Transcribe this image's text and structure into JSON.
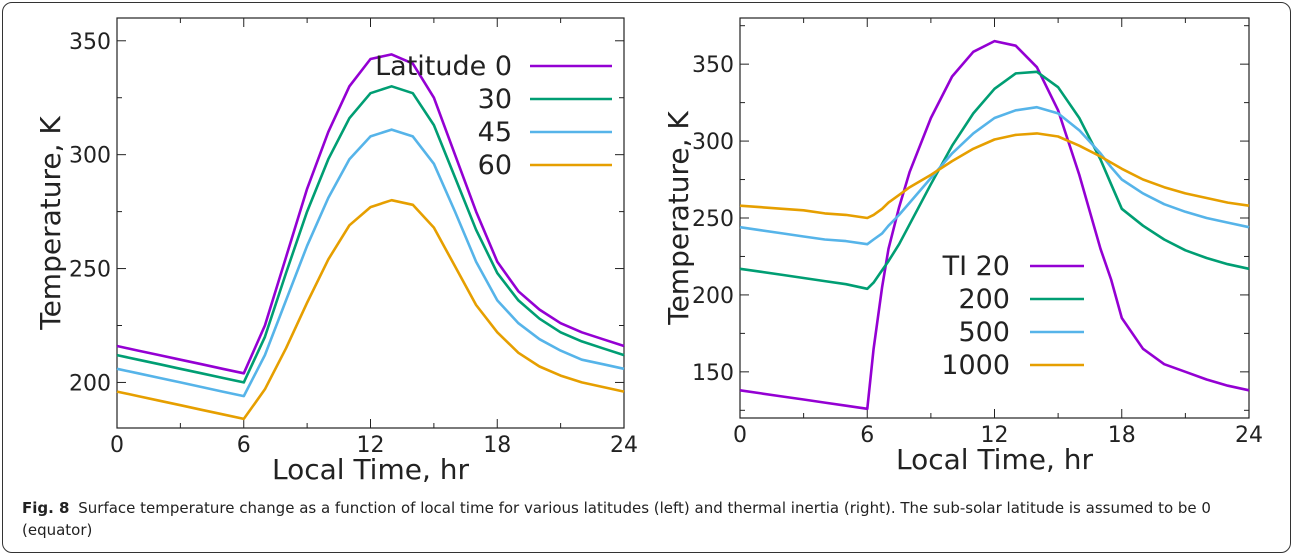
{
  "caption": {
    "label": "Fig. 8",
    "text": "Surface temperature change as a function of local time for various latitudes (left) and thermal inertia (right). The sub-solar latitude is assumed to be 0 (equator)"
  },
  "colors": {
    "purple": "#9400d3",
    "green": "#009e73",
    "blue": "#56b4e9",
    "orange": "#e69f00"
  },
  "chart_data": [
    {
      "type": "line",
      "xlabel": "Local Time, hr",
      "ylabel": "Temperature, K",
      "xlim": [
        0,
        24
      ],
      "ylim": [
        180,
        360
      ],
      "xticks": [
        0,
        6,
        12,
        18,
        24
      ],
      "yticks": [
        200,
        250,
        300,
        350
      ],
      "grid": false,
      "legend_position": "top-right",
      "x": [
        0,
        1,
        2,
        3,
        4,
        5,
        6,
        7,
        8,
        9,
        10,
        11,
        12,
        13,
        14,
        15,
        16,
        17,
        18,
        19,
        20,
        21,
        22,
        23,
        24
      ],
      "series": [
        {
          "name": "Latitude 0",
          "color": "#9400d3",
          "values": [
            216,
            214,
            212,
            210,
            208,
            206,
            204,
            225,
            255,
            285,
            310,
            330,
            342,
            344,
            340,
            325,
            300,
            275,
            253,
            240,
            232,
            226,
            222,
            219,
            216
          ]
        },
        {
          "name": "30",
          "color": "#009e73",
          "values": [
            212,
            210,
            208,
            206,
            204,
            202,
            200,
            220,
            248,
            275,
            298,
            316,
            327,
            330,
            327,
            313,
            290,
            267,
            248,
            236,
            228,
            222,
            218,
            215,
            212
          ]
        },
        {
          "name": "45",
          "color": "#56b4e9",
          "values": [
            206,
            204,
            202,
            200,
            198,
            196,
            194,
            212,
            236,
            260,
            281,
            298,
            308,
            311,
            308,
            296,
            275,
            253,
            236,
            226,
            219,
            214,
            210,
            208,
            206
          ]
        },
        {
          "name": "60",
          "color": "#e69f00",
          "values": [
            196,
            194,
            192,
            190,
            188,
            186,
            184,
            197,
            215,
            235,
            254,
            269,
            277,
            280,
            278,
            268,
            251,
            234,
            222,
            213,
            207,
            203,
            200,
            198,
            196
          ]
        }
      ]
    },
    {
      "type": "line",
      "xlabel": "Local Time, hr",
      "ylabel": "Temperature, K",
      "xlim": [
        0,
        24
      ],
      "ylim": [
        120,
        380
      ],
      "xticks": [
        0,
        6,
        12,
        18,
        24
      ],
      "yticks": [
        150,
        200,
        250,
        300,
        350
      ],
      "grid": false,
      "legend_position": "bottom-center",
      "legend_prefix": "TI",
      "x": [
        0,
        1,
        2,
        3,
        4,
        5,
        6,
        6.3,
        6.7,
        7,
        7.5,
        8,
        9,
        10,
        11,
        12,
        13,
        14,
        15,
        16,
        17,
        17.5,
        18,
        19,
        20,
        21,
        22,
        23,
        24
      ],
      "series": [
        {
          "name": "20",
          "color": "#9400d3",
          "values": [
            138,
            136,
            134,
            132,
            130,
            128,
            126,
            165,
            205,
            230,
            257,
            280,
            315,
            342,
            358,
            365,
            362,
            348,
            320,
            278,
            230,
            210,
            185,
            165,
            155,
            150,
            145,
            141,
            138
          ]
        },
        {
          "name": "200",
          "color": "#009e73",
          "values": [
            217,
            215,
            213,
            211,
            209,
            207,
            204,
            208,
            216,
            222,
            233,
            246,
            272,
            297,
            318,
            334,
            344,
            345,
            335,
            315,
            288,
            272,
            256,
            245,
            236,
            229,
            224,
            220,
            217
          ]
        },
        {
          "name": "500",
          "color": "#56b4e9",
          "values": [
            244,
            242,
            240,
            238,
            236,
            235,
            233,
            236,
            240,
            245,
            252,
            260,
            276,
            292,
            305,
            315,
            320,
            322,
            318,
            307,
            292,
            283,
            275,
            266,
            259,
            254,
            250,
            247,
            244
          ]
        },
        {
          "name": "1000",
          "color": "#e69f00",
          "values": [
            258,
            257,
            256,
            255,
            253,
            252,
            250,
            252,
            256,
            260,
            265,
            270,
            278,
            287,
            295,
            301,
            304,
            305,
            303,
            297,
            290,
            286,
            282,
            275,
            270,
            266,
            263,
            260,
            258
          ]
        }
      ]
    }
  ]
}
